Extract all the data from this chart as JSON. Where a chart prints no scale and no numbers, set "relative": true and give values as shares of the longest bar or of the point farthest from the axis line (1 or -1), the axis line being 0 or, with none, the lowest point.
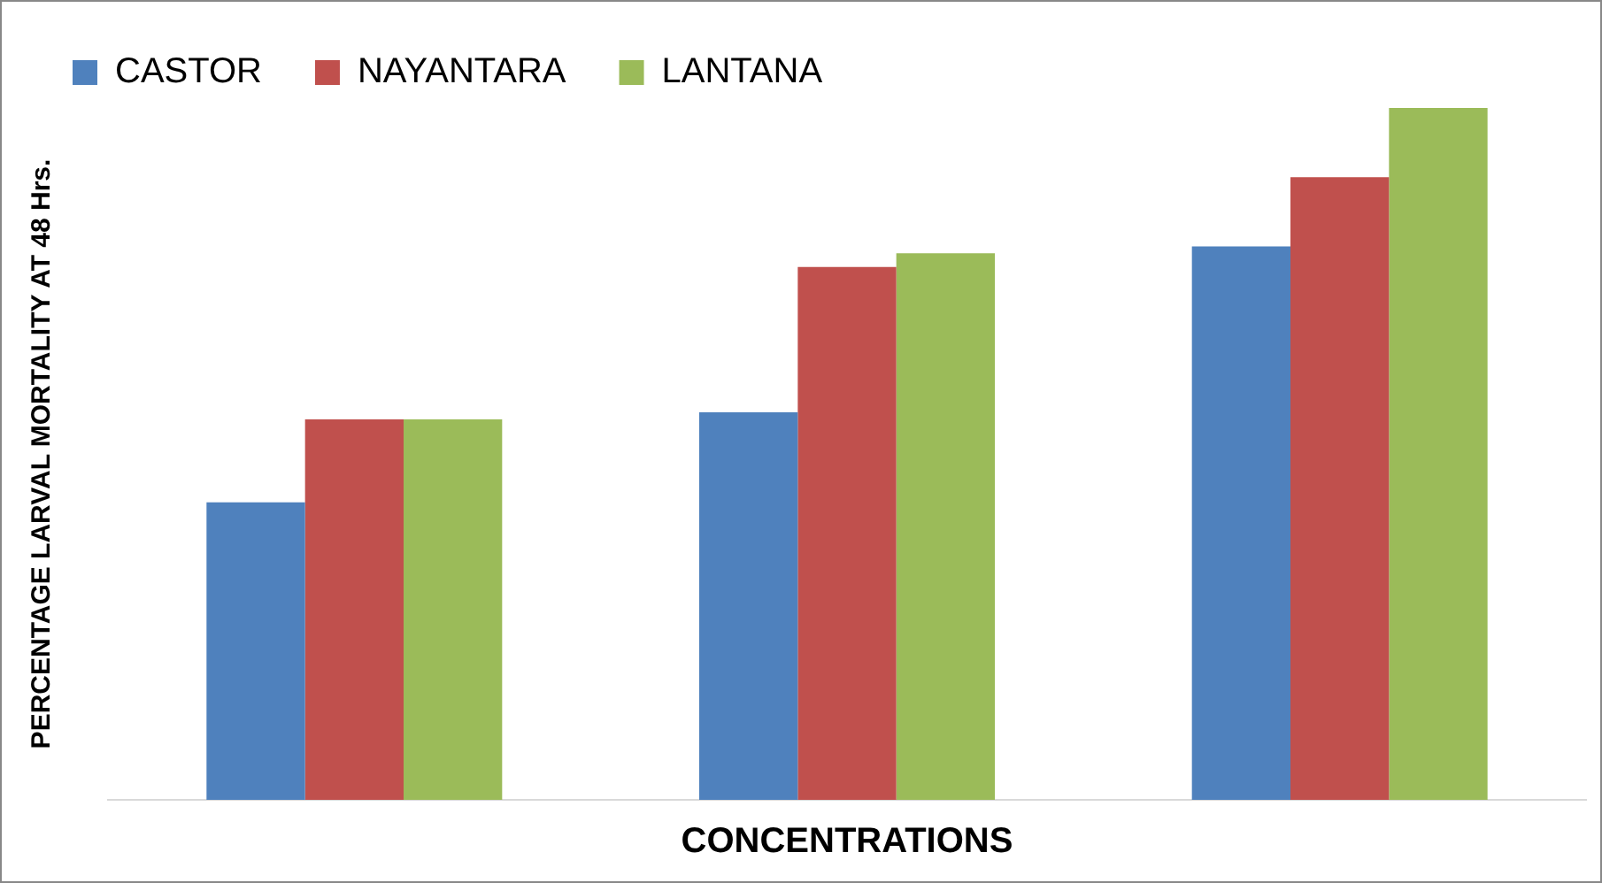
{
  "chart_data": {
    "type": "bar",
    "relative": true,
    "xlabel": "CONCENTRATIONS",
    "ylabel": "PERCENTAGE LARVAL MORTALITY AT 48 Hrs.",
    "categories": [
      null,
      null,
      null
    ],
    "legend": "top left",
    "grid": false,
    "series": [
      {
        "name": "CASTOR",
        "color": "#4f81bd",
        "values": [
          0.43,
          0.56,
          0.8
        ]
      },
      {
        "name": "NAYANTARA",
        "color": "#c0504d",
        "values": [
          0.55,
          0.77,
          0.9
        ]
      },
      {
        "name": "LANTANA",
        "color": "#9bbb59",
        "values": [
          0.55,
          0.79,
          1
        ]
      }
    ]
  }
}
